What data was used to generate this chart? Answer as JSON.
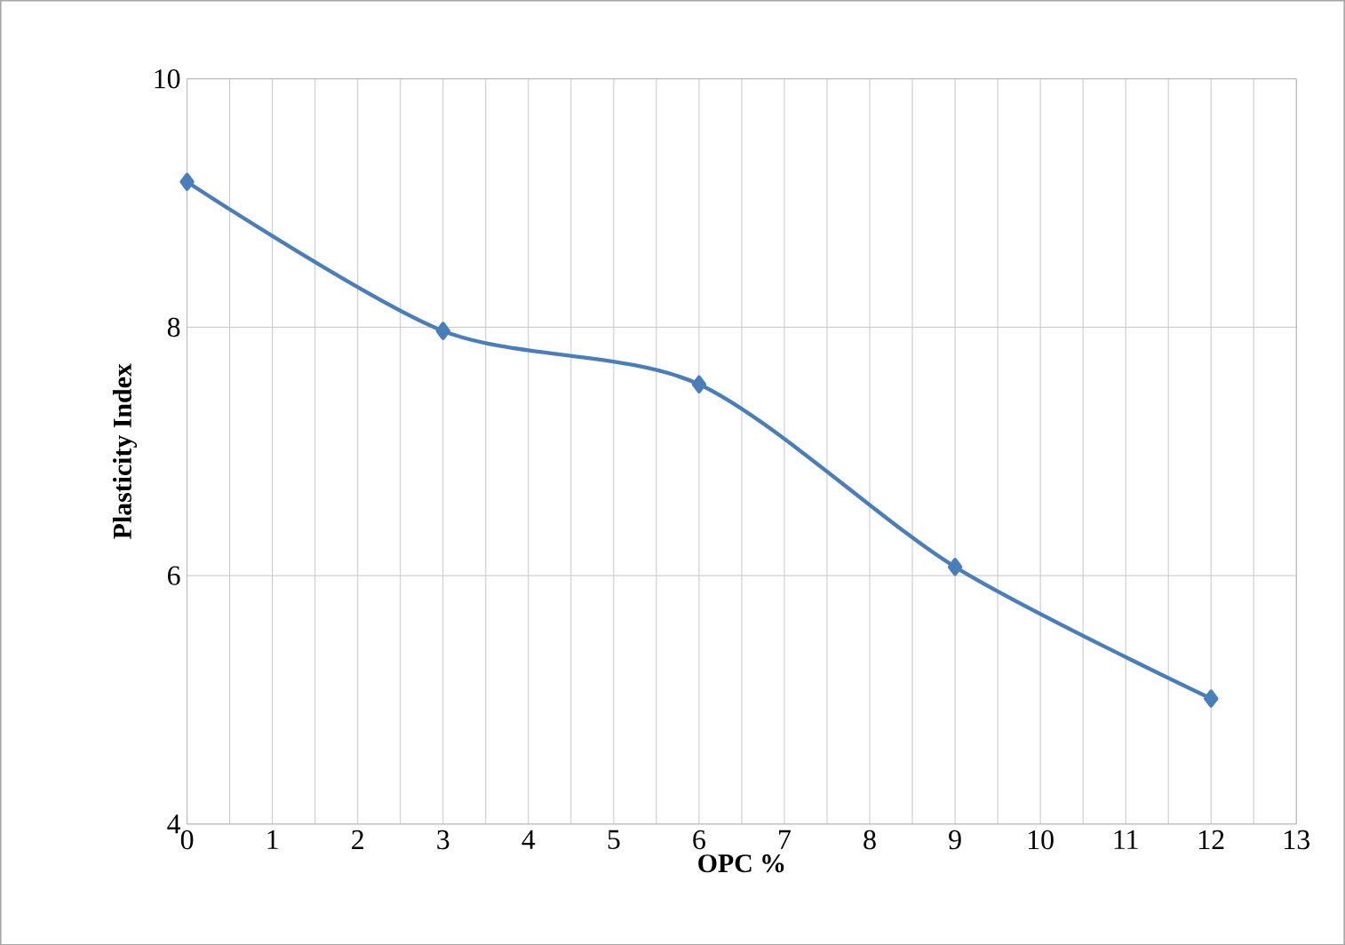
{
  "chart_data": {
    "type": "line",
    "xlabel": "OPC %",
    "ylabel": "Plasticity Index",
    "x": [
      0,
      3,
      6,
      9,
      12
    ],
    "series": [
      {
        "color": "#4a7ebb",
        "values": [
          9.17,
          7.97,
          7.54,
          6.07,
          5.01
        ]
      }
    ],
    "xlim": [
      0,
      13
    ],
    "xticks": [
      0,
      1,
      2,
      3,
      4,
      5,
      6,
      7,
      8,
      9,
      10,
      11,
      12,
      13
    ],
    "ylim": [
      4,
      10
    ],
    "yticks": [
      4,
      6,
      8,
      10
    ],
    "grid": true,
    "marker": "diamond",
    "line_style": "solid"
  }
}
